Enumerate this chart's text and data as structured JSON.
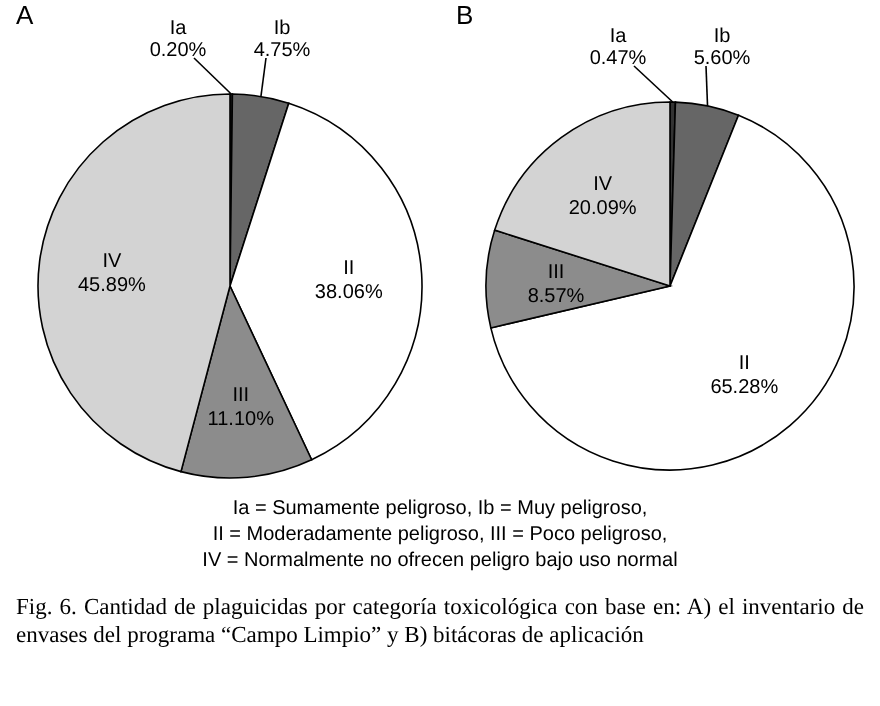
{
  "chart_data": [
    {
      "type": "pie",
      "title": "A",
      "categories": [
        "Ia",
        "Ib",
        "II",
        "III",
        "IV"
      ],
      "values": [
        0.2,
        4.75,
        38.06,
        11.1,
        45.89
      ],
      "value_labels": [
        "0.20%",
        "4.75%",
        "38.06%",
        "11.10%",
        "45.89%"
      ],
      "colors": [
        "#333333",
        "#666666",
        "#ffffff",
        "#8c8c8c",
        "#d3d3d3"
      ]
    },
    {
      "type": "pie",
      "title": "B",
      "categories": [
        "Ia",
        "Ib",
        "II",
        "III",
        "IV"
      ],
      "values": [
        0.47,
        5.6,
        65.28,
        8.57,
        20.09
      ],
      "value_labels": [
        "0.47%",
        "5.60%",
        "65.28%",
        "8.57%",
        "20.09%"
      ],
      "colors": [
        "#333333",
        "#666666",
        "#ffffff",
        "#8c8c8c",
        "#d3d3d3"
      ],
      "annotations": [
        "Ia = Sumamente peligroso, Ib = Muy peligroso,",
        "II = Moderadamente peligroso, III = Poco peligroso,",
        "IV = Normalmente no ofrecen peligro bajo uso normal",
        "Fig. 6. Cantidad de plaguicidas por categoría toxicológica con base en: A) el inventario de envases del programa “Campo Limpio” y B) bitácoras de aplicación"
      ]
    }
  ]
}
